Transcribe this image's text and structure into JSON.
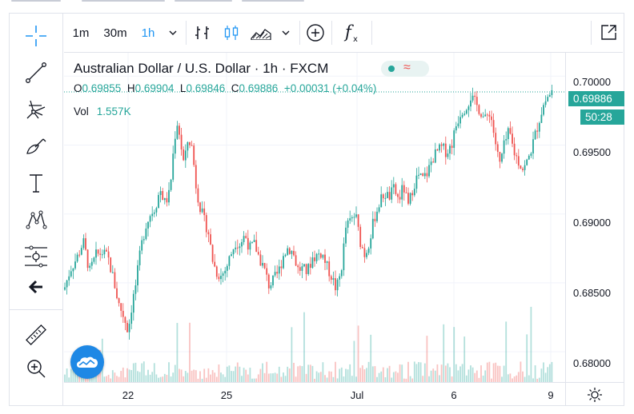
{
  "toolbar": {
    "intervals": [
      "1m",
      "30m",
      "1h"
    ],
    "active_interval": "1h",
    "dropdown_icon": "chevron-down-icon",
    "chart_type_icons": [
      "bar-chart-icon",
      "candlestick-icon",
      "area-chart-icon"
    ],
    "indicator_icons": [
      "add-compare-icon",
      "indicators-fx-icon"
    ],
    "fullscreen_icon": "fullscreen-icon"
  },
  "sidebar": {
    "tools": [
      "crosshair-icon",
      "trendline-icon",
      "pitchfork-icon",
      "brush-icon",
      "text-icon",
      "pattern-icon",
      "measure-levels-icon",
      "back-arrow-icon",
      "ruler-icon",
      "zoom-icon"
    ]
  },
  "legend": {
    "title": "Australian Dollar / U.S. Dollar · 1h · FXCM",
    "open_label": "O",
    "open": "0.69855",
    "high_label": "H",
    "high": "0.69904",
    "low_label": "L",
    "low": "0.69846",
    "close_label": "C",
    "close": "0.69886",
    "change": "+0.00031 (+0.04%)",
    "volume_label": "Vol",
    "volume": "1.557K",
    "market_status": "open"
  },
  "price_axis": {
    "labels": [
      "0.70000",
      "0.69500",
      "0.69000",
      "0.68500",
      "0.68000"
    ],
    "last_price": "0.69886",
    "countdown": "50:28",
    "settings_icon": "gear-icon"
  },
  "time_axis": {
    "labels": [
      "22",
      "25",
      "Jul",
      "6",
      "9"
    ]
  },
  "colors": {
    "up": "#26a69a",
    "down": "#ef5350",
    "accent": "#2196f3",
    "grid": "#f0f3fa"
  },
  "chart_data": {
    "type": "candlestick",
    "symbol": "AUDUSD",
    "interval": "1h",
    "ylim": [
      0.6778,
      0.7017
    ],
    "x_ticks": [
      "22",
      "25",
      "Jul",
      "6",
      "9"
    ],
    "close_path": [
      [
        0,
        0.6845
      ],
      [
        8,
        0.686
      ],
      [
        16,
        0.6868
      ],
      [
        24,
        0.688
      ],
      [
        32,
        0.6858
      ],
      [
        40,
        0.687
      ],
      [
        48,
        0.6872
      ],
      [
        55,
        0.6868
      ],
      [
        62,
        0.6852
      ],
      [
        68,
        0.6835
      ],
      [
        75,
        0.6825
      ],
      [
        80,
        0.6815
      ],
      [
        85,
        0.6835
      ],
      [
        90,
        0.685
      ],
      [
        96,
        0.6875
      ],
      [
        102,
        0.6892
      ],
      [
        108,
        0.69
      ],
      [
        114,
        0.6905
      ],
      [
        120,
        0.6918
      ],
      [
        126,
        0.6908
      ],
      [
        132,
        0.6915
      ],
      [
        138,
        0.6955
      ],
      [
        142,
        0.6968
      ],
      [
        146,
        0.695
      ],
      [
        150,
        0.6935
      ],
      [
        155,
        0.6955
      ],
      [
        160,
        0.6948
      ],
      [
        165,
        0.692
      ],
      [
        170,
        0.6905
      ],
      [
        175,
        0.6895
      ],
      [
        180,
        0.6888
      ],
      [
        185,
        0.6868
      ],
      [
        190,
        0.6858
      ],
      [
        196,
        0.6855
      ],
      [
        202,
        0.686
      ],
      [
        208,
        0.687
      ],
      [
        214,
        0.688
      ],
      [
        220,
        0.6878
      ],
      [
        226,
        0.6885
      ],
      [
        232,
        0.6875
      ],
      [
        238,
        0.6878
      ],
      [
        244,
        0.6868
      ],
      [
        250,
        0.686
      ],
      [
        256,
        0.6848
      ],
      [
        262,
        0.6852
      ],
      [
        268,
        0.6858
      ],
      [
        274,
        0.687
      ],
      [
        280,
        0.6876
      ],
      [
        286,
        0.6872
      ],
      [
        292,
        0.686
      ],
      [
        298,
        0.686
      ],
      [
        304,
        0.6858
      ],
      [
        310,
        0.6868
      ],
      [
        316,
        0.687
      ],
      [
        322,
        0.6872
      ],
      [
        328,
        0.6862
      ],
      [
        334,
        0.6855
      ],
      [
        340,
        0.6845
      ],
      [
        346,
        0.6858
      ],
      [
        352,
        0.689
      ],
      [
        358,
        0.6895
      ],
      [
        364,
        0.69
      ],
      [
        370,
        0.688
      ],
      [
        376,
        0.687
      ],
      [
        382,
        0.6882
      ],
      [
        388,
        0.6898
      ],
      [
        394,
        0.6908
      ],
      [
        400,
        0.6915
      ],
      [
        406,
        0.6912
      ],
      [
        412,
        0.6918
      ],
      [
        418,
        0.691
      ],
      [
        424,
        0.692
      ],
      [
        430,
        0.6905
      ],
      [
        436,
        0.692
      ],
      [
        442,
        0.6928
      ],
      [
        448,
        0.6925
      ],
      [
        454,
        0.693
      ],
      [
        460,
        0.694
      ],
      [
        466,
        0.6945
      ],
      [
        472,
        0.6948
      ],
      [
        478,
        0.6945
      ],
      [
        484,
        0.695
      ],
      [
        490,
        0.6965
      ],
      [
        496,
        0.6975
      ],
      [
        502,
        0.6978
      ],
      [
        508,
        0.6985
      ],
      [
        514,
        0.698
      ],
      [
        520,
        0.6975
      ],
      [
        526,
        0.6968
      ],
      [
        532,
        0.6975
      ],
      [
        538,
        0.6955
      ],
      [
        544,
        0.6935
      ],
      [
        550,
        0.695
      ],
      [
        556,
        0.696
      ],
      [
        562,
        0.6945
      ],
      [
        568,
        0.6938
      ],
      [
        574,
        0.6932
      ],
      [
        580,
        0.694
      ],
      [
        586,
        0.6952
      ],
      [
        592,
        0.6965
      ],
      [
        598,
        0.6978
      ],
      [
        604,
        0.6985
      ],
      [
        610,
        0.6989
      ]
    ],
    "volume_max": 1557
  }
}
